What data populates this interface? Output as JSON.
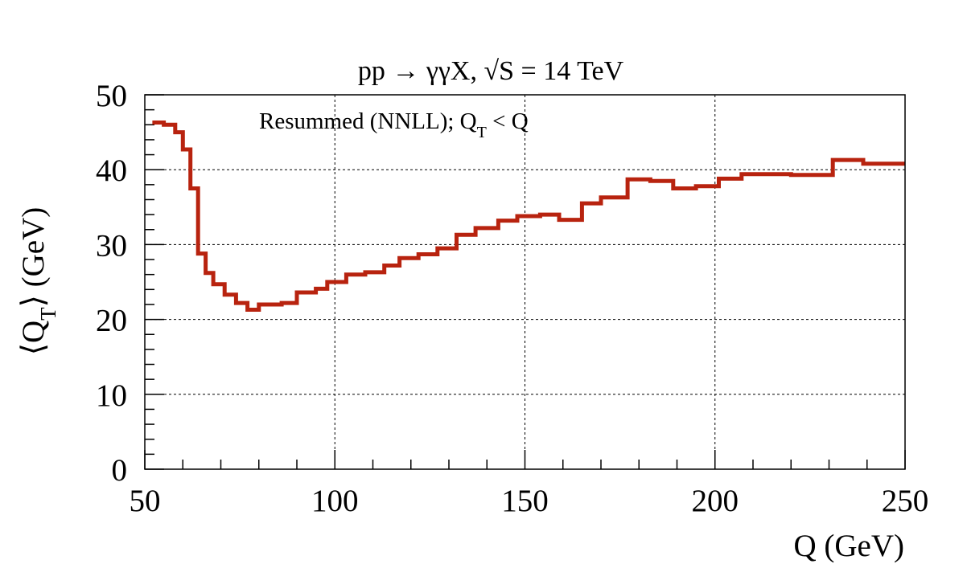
{
  "chart_data": {
    "type": "line",
    "step": true,
    "title": "pp → γγX, √S = 14 TeV",
    "annotation": "Resummed (NNLL); Q_T < Q",
    "xlabel": "Q (GeV)",
    "ylabel": "⟨Q_T⟩ (GeV)",
    "xlim": [
      50,
      250
    ],
    "ylim": [
      0,
      50
    ],
    "xticks": [
      50,
      100,
      150,
      200,
      250
    ],
    "yticks": [
      0,
      10,
      20,
      30,
      40,
      50
    ],
    "grid": true,
    "line_color": "#b8230f",
    "series": [
      {
        "edges": [
          52,
          55,
          58,
          60,
          62,
          64,
          66,
          68,
          71,
          74,
          77,
          80,
          86,
          90,
          95,
          98,
          103,
          108,
          113,
          117,
          122,
          127,
          132,
          137,
          143,
          148,
          154,
          159,
          165,
          170,
          177,
          183,
          189,
          195,
          201,
          207,
          214,
          220,
          226,
          231,
          239,
          247,
          250
        ],
        "values": [
          46.3,
          46.0,
          45.0,
          42.7,
          37.5,
          28.8,
          26.2,
          24.7,
          23.3,
          22.2,
          21.3,
          22.0,
          22.2,
          23.6,
          24.1,
          25.0,
          26.0,
          26.3,
          27.2,
          28.2,
          28.7,
          29.5,
          31.3,
          32.2,
          33.2,
          33.8,
          34.0,
          33.3,
          35.5,
          36.3,
          38.7,
          38.5,
          37.5,
          37.8,
          38.8,
          39.4,
          39.4,
          39.3,
          39.3,
          41.3,
          40.8,
          40.8
        ]
      }
    ]
  }
}
